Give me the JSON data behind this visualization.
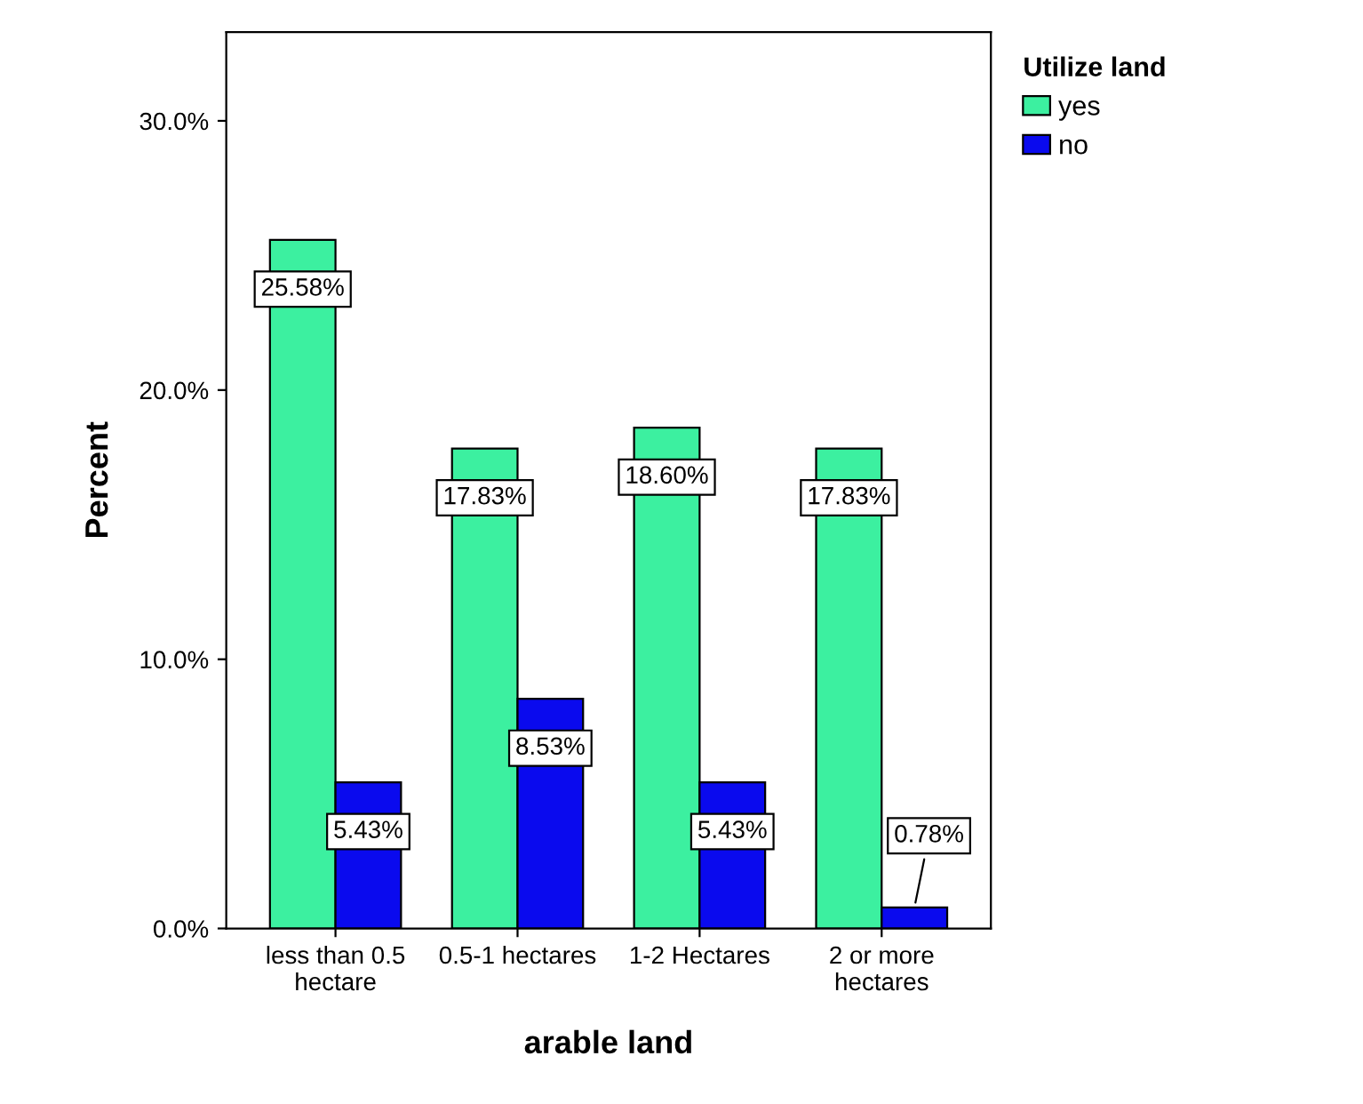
{
  "chart_data": {
    "type": "bar",
    "xlabel": "arable land",
    "ylabel": "Percent",
    "legend_title": "Utilize land",
    "categories": [
      "less than 0.5\nhectare",
      "0.5-1 hectares",
      "1-2 Hectares",
      "2 or more\nhectares"
    ],
    "series": [
      {
        "name": "yes",
        "color": "#3cf0a0",
        "values": [
          25.58,
          17.83,
          18.6,
          17.83
        ],
        "value_labels": [
          "25.58%",
          "17.83%",
          "18.60%",
          "17.83%"
        ]
      },
      {
        "name": "no",
        "color": "#0a0aee",
        "values": [
          5.43,
          8.53,
          5.43,
          0.78
        ],
        "value_labels": [
          "5.43%",
          "8.53%",
          "5.43%",
          "0.78%"
        ]
      }
    ],
    "ylim": [
      0,
      33.3
    ],
    "yticks": [
      {
        "value": 0,
        "label": "0.0%"
      },
      {
        "value": 10,
        "label": "10.0%"
      },
      {
        "value": 20,
        "label": "20.0%"
      },
      {
        "value": 30,
        "label": "30.0%"
      }
    ],
    "grid": false,
    "legend": "top right"
  }
}
